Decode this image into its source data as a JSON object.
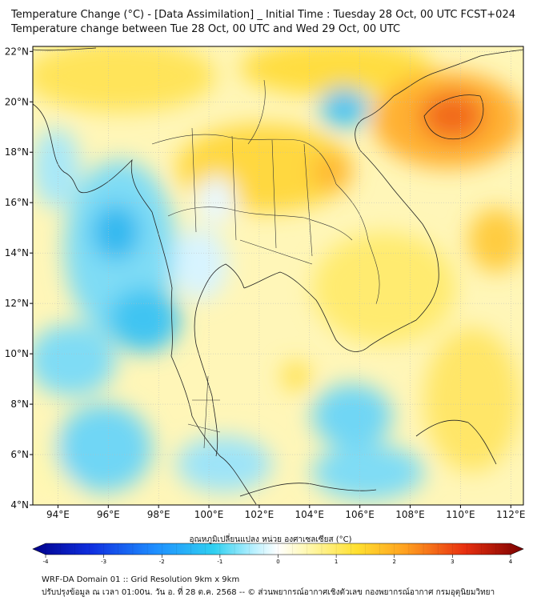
{
  "header": {
    "title_line1": "Temperature Change (°C) - [Data Assimilation] _ Initial Time : Tuesday 28 Oct, 00 UTC FCST+024",
    "title_line2": "Temperature change between Tue 28 Oct, 00 UTC and Wed 29 Oct, 00 UTC"
  },
  "map": {
    "lon_ticks": [
      "94°E",
      "96°E",
      "98°E",
      "100°E",
      "102°E",
      "104°E",
      "106°E",
      "108°E",
      "110°E",
      "112°E"
    ],
    "lat_ticks": [
      "22°N",
      "20°N",
      "18°N",
      "16°N",
      "14°N",
      "12°N",
      "10°N",
      "8°N",
      "6°N",
      "4°N"
    ],
    "lon_range": [
      93,
      112.5
    ],
    "lat_range": [
      4,
      22.2
    ]
  },
  "colorbar": {
    "label": "อุณหภูมิเปลี่ยนแปลง หน่วย องศาเซลเซียส (°C)",
    "ticks": [
      "-4",
      "-3",
      "-2",
      "-1",
      "0",
      "1",
      "2",
      "3",
      "4"
    ],
    "range": [
      -4,
      4
    ],
    "colors": [
      "#00008b",
      "#1030e0",
      "#1f8fff",
      "#30d0f0",
      "#b8f0ff",
      "#ffffff",
      "#fff8b0",
      "#ffe030",
      "#ffa020",
      "#e83010",
      "#7a0000"
    ]
  },
  "footer": {
    "line1": "WRF-DA Domain 01 :: Grid Resolution 9km x 9km",
    "line2": "ปรับปรุงข้อมูล ณ เวลา 01:00น. วัน อ. ที่ 28 ต.ค. 2568 -- © ส่วนพยากรณ์อากาศเชิงตัวเลข กองพยากรณ์อากาศ กรมอุตุนิยมวิทยา"
  }
}
